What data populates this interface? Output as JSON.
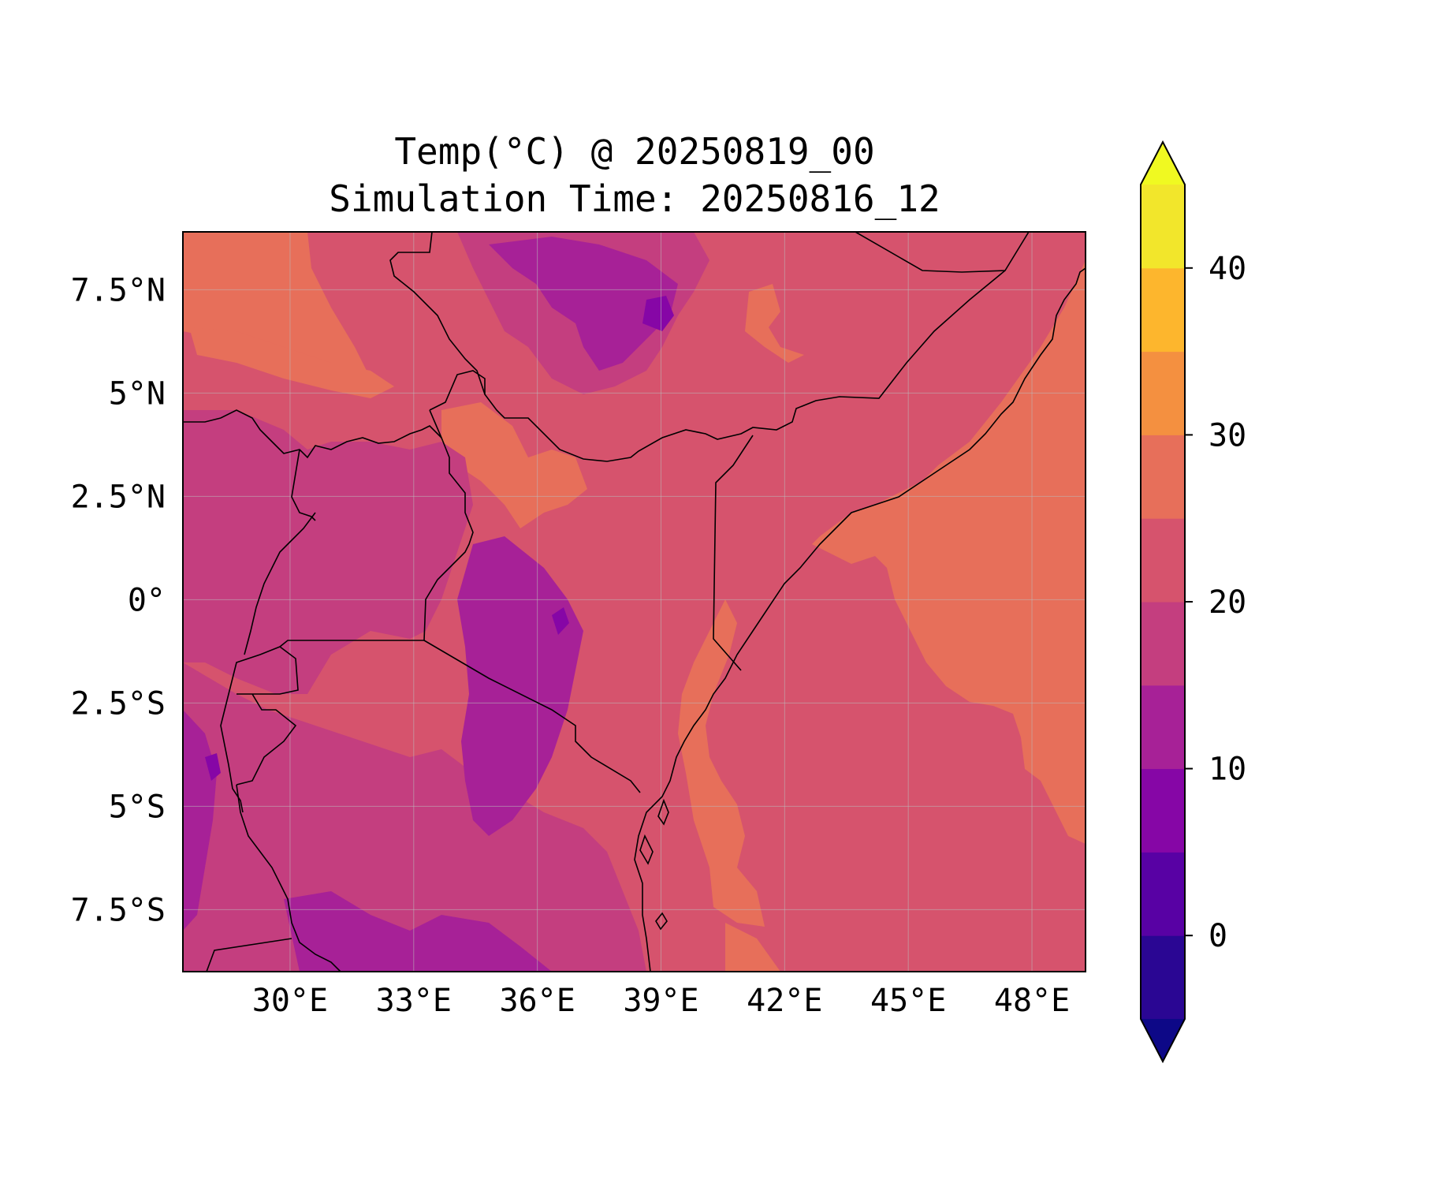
{
  "title": {
    "line1": "Temp(°C) @ 20250819_00",
    "line2": "Simulation Time: 20250816_12"
  },
  "map": {
    "lon_range": [
      27.4,
      49.3
    ],
    "lat_range": [
      -9.0,
      8.9
    ],
    "background_color": "#d6536d",
    "x_ticks": [
      {
        "value": 30,
        "label": "30°E"
      },
      {
        "value": 33,
        "label": "33°E"
      },
      {
        "value": 36,
        "label": "36°E"
      },
      {
        "value": 39,
        "label": "39°E"
      },
      {
        "value": 42,
        "label": "42°E"
      },
      {
        "value": 45,
        "label": "45°E"
      },
      {
        "value": 48,
        "label": "48°E"
      }
    ],
    "y_ticks": [
      {
        "value": 7.5,
        "label": "7.5°N"
      },
      {
        "value": 5,
        "label": "5°N"
      },
      {
        "value": 2.5,
        "label": "2.5°N"
      },
      {
        "value": 0,
        "label": "0°"
      },
      {
        "value": -2.5,
        "label": "2.5°S"
      },
      {
        "value": -5,
        "label": "5°S"
      },
      {
        "value": -7.5,
        "label": "7.5°S"
      }
    ],
    "gridlines": true
  },
  "colorbar": {
    "colormap": "plasma",
    "extend": "both",
    "levels": [
      -5,
      0,
      5,
      10,
      15,
      20,
      25,
      30,
      35,
      40,
      45
    ],
    "colors": [
      "#2a0693",
      "#5801a4",
      "#8606a6",
      "#a72197",
      "#c43e7f",
      "#d6536d",
      "#e76f5a",
      "#f49040",
      "#fdb62d",
      "#f2e62b"
    ],
    "under_color": "#0d0887",
    "over_color": "#f0f921",
    "ticks": [
      {
        "value": 0,
        "label": "0"
      },
      {
        "value": 10,
        "label": "10"
      },
      {
        "value": 20,
        "label": "20"
      },
      {
        "value": 30,
        "label": "30"
      },
      {
        "value": 40,
        "label": "40"
      }
    ]
  }
}
